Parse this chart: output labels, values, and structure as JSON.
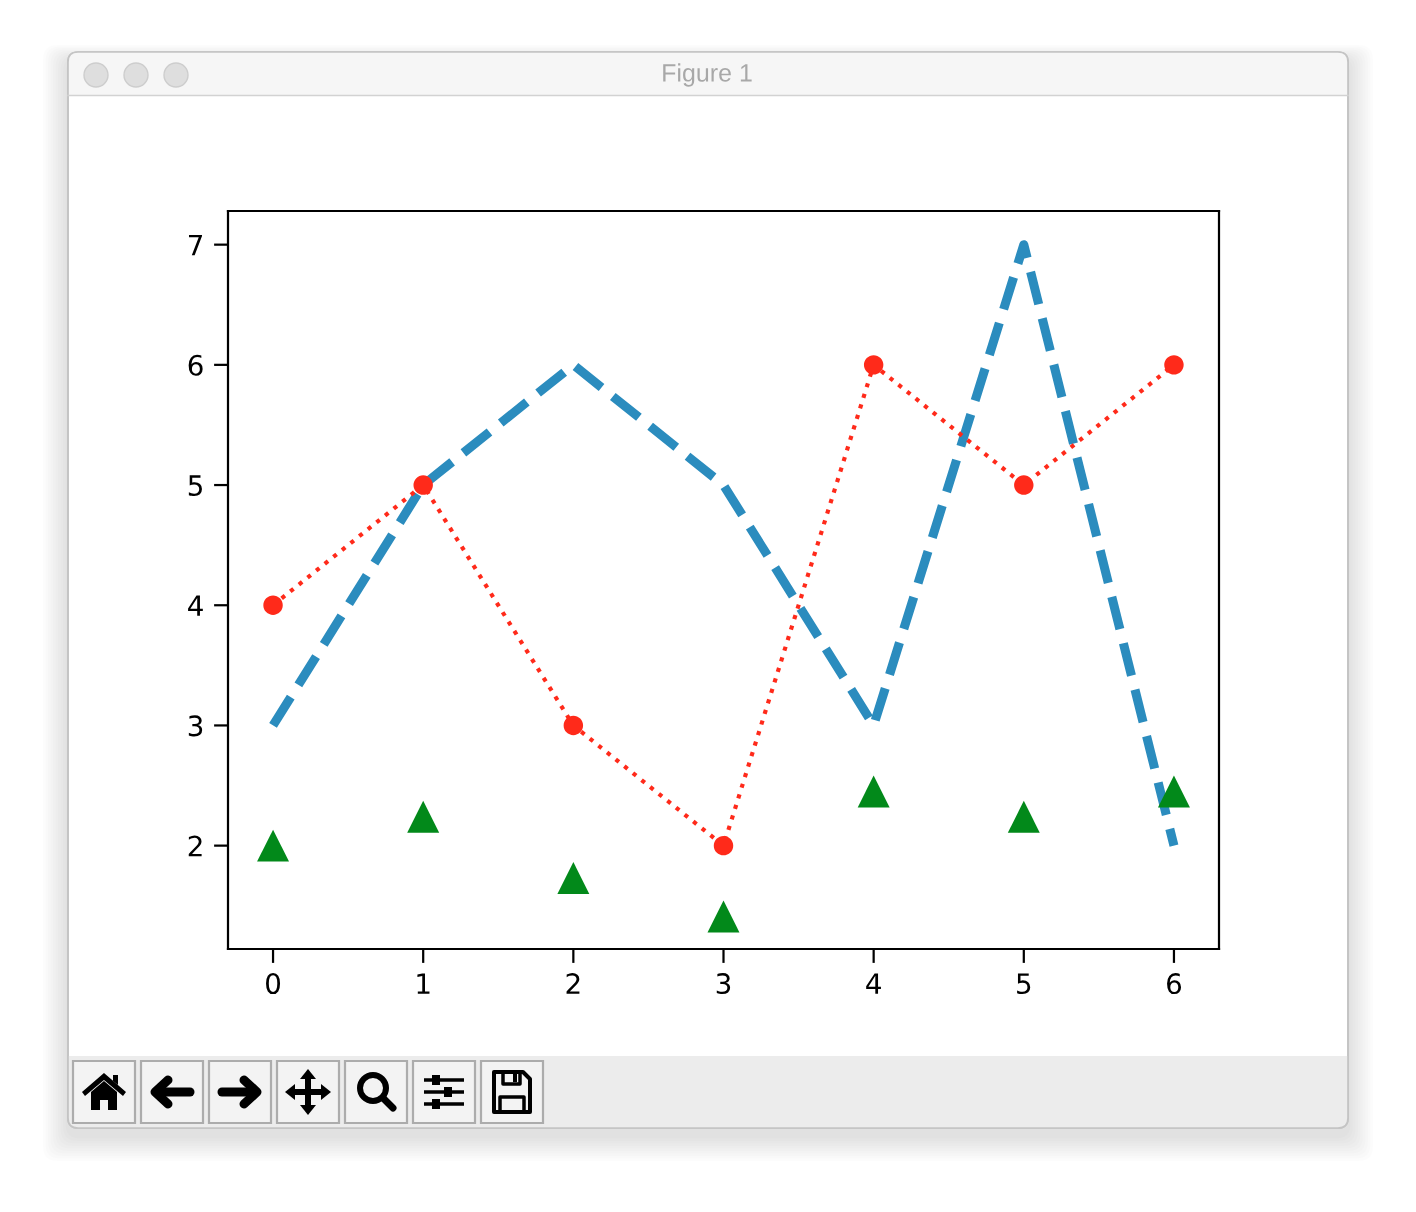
{
  "chart_data": {
    "type": "line",
    "title": "Figure 1",
    "x": [
      0,
      1,
      2,
      3,
      4,
      5,
      6
    ],
    "series": [
      {
        "color": "#2b8cbe",
        "values": [
          3,
          5,
          6,
          5,
          3,
          7,
          2
        ],
        "line_style": "dashed",
        "marker": "none"
      },
      {
        "color": "#ff2a1a",
        "values": [
          4,
          5,
          3,
          2,
          6,
          5,
          6
        ],
        "line_style": "dotted",
        "marker": "circle"
      },
      {
        "type": "scatter",
        "color": "#02891a",
        "values": [
          2.0,
          2.24,
          1.73,
          1.41,
          2.45,
          2.24,
          2.45
        ],
        "marker": "triangle"
      }
    ],
    "xlim": [
      -0.3,
      6.3
    ],
    "ylim": [
      1.14,
      7.28
    ],
    "xticks": [
      0,
      1,
      2,
      3,
      4,
      5,
      6
    ],
    "yticks": [
      2,
      3,
      4,
      5,
      6,
      7
    ]
  }
}
